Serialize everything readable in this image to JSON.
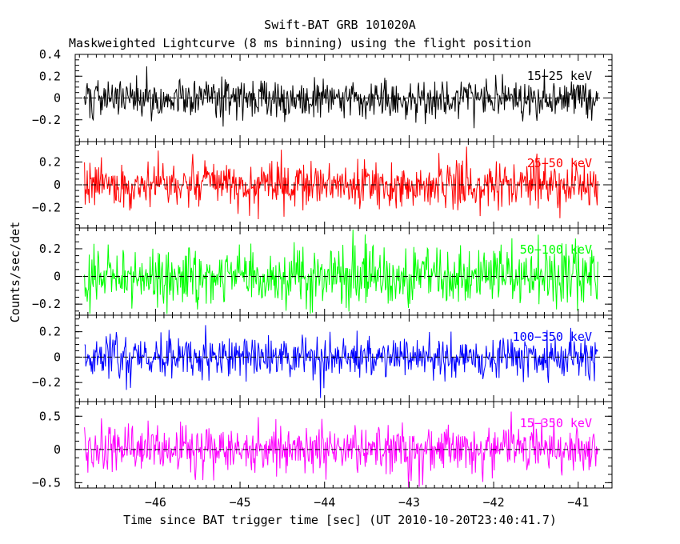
{
  "chart_data": {
    "type": "line",
    "title": "Swift-BAT GRB 101020A",
    "subtitle": "Maskweighted Lightcurve (8 ms binning) using the flight position",
    "xlabel": "Time since BAT trigger time [sec] (UT 2010-10-20T23:40:41.7)",
    "ylabel": "Counts/sec/det",
    "xlim": [
      -46.95,
      -40.6
    ],
    "x_ticks": [
      -46,
      -45,
      -44,
      -43,
      -42,
      -41
    ],
    "x_tick_labels": [
      "−46",
      "−45",
      "−44",
      "−43",
      "−42",
      "−41"
    ],
    "data_range": [
      -46.84,
      -40.76
    ],
    "bin_width_s": 0.008,
    "series": [
      {
        "name": "15-25 keV",
        "label": "15−25 keV",
        "color": "#000000",
        "ylim": [
          -0.4,
          0.4
        ],
        "y_ticks": [
          -0.2,
          0,
          0.2,
          0.4
        ],
        "y_tick_labels": [
          "−0.2",
          "0",
          "0.2",
          "0.4"
        ],
        "mean": 0,
        "std": 0.09,
        "seed": 101
      },
      {
        "name": "25-50 keV",
        "label": "25−50 keV",
        "color": "#ff0000",
        "ylim": [
          -0.38,
          0.38
        ],
        "y_ticks": [
          -0.2,
          0,
          0.2
        ],
        "y_tick_labels": [
          "−0.2",
          "0",
          "0.2"
        ],
        "mean": 0,
        "std": 0.1,
        "seed": 202
      },
      {
        "name": "50-100 keV",
        "label": "50−100 keV",
        "color": "#00ff00",
        "ylim": [
          -0.28,
          0.35
        ],
        "y_ticks": [
          -0.2,
          0,
          0.2
        ],
        "y_tick_labels": [
          "−0.2",
          "0",
          "0.2"
        ],
        "mean": 0,
        "std": 0.1,
        "seed": 303
      },
      {
        "name": "100-350 keV",
        "label": "100−350 keV",
        "color": "#0000ff",
        "ylim": [
          -0.35,
          0.33
        ],
        "y_ticks": [
          -0.2,
          0,
          0.2
        ],
        "y_tick_labels": [
          "−0.2",
          "0",
          "0.2"
        ],
        "mean": 0,
        "std": 0.085,
        "seed": 404
      },
      {
        "name": "15-350 keV",
        "label": "15−350 keV",
        "color": "#ff00ff",
        "ylim": [
          -0.58,
          0.72
        ],
        "y_ticks": [
          -0.5,
          0,
          0.5
        ],
        "y_tick_labels": [
          "−0.5",
          "0",
          "0.5"
        ],
        "mean": 0,
        "std": 0.19,
        "seed": 505
      }
    ]
  }
}
